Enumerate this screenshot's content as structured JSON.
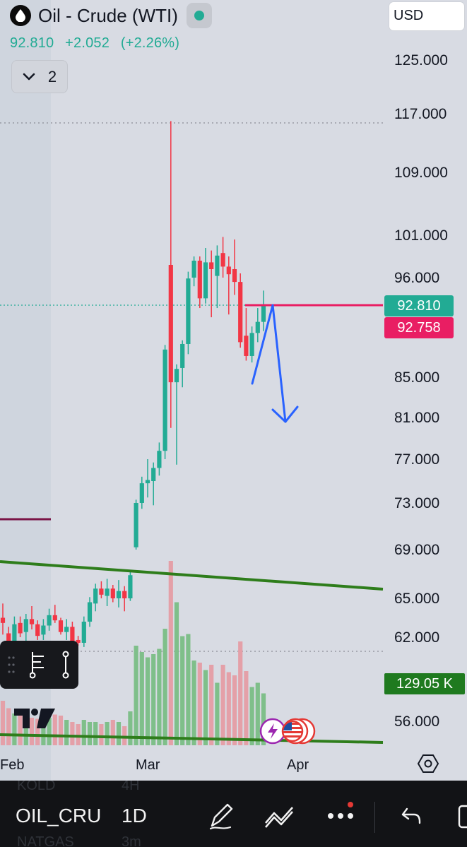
{
  "header": {
    "symbol": "Oil - Crude (WTI)",
    "last_price": "92.810",
    "change": "+2.052",
    "change_pct": "(+2.26%)",
    "indicators_count": "2",
    "currency": "USD"
  },
  "colors": {
    "up": "#22ab94",
    "down": "#f23645",
    "background": "#d8dbe3",
    "trendline": "#2e7d1b",
    "drawing_arrow": "#2962ff",
    "horizontal_line": "#e91e63"
  },
  "price_axis": {
    "ticks": [
      "125.000",
      "117.000",
      "109.000",
      "101.000",
      "96.000",
      "85.000",
      "81.000",
      "77.000",
      "73.000",
      "69.000",
      "65.000",
      "62.000",
      "56.000"
    ],
    "last_price_tag": "92.810",
    "line_tag": "92.758",
    "volume_tag": "129.05 K"
  },
  "time_axis": {
    "labels": [
      "Feb",
      "Mar",
      "Apr"
    ]
  },
  "chart_data": {
    "type": "candlestick",
    "title": "Oil - Crude (WTI)",
    "interval": "1D",
    "y_axis_ticks": [
      125,
      117,
      109,
      101,
      96,
      92.81,
      85,
      81,
      77,
      73,
      69,
      65,
      62,
      56
    ],
    "x_axis_labels": [
      "Feb",
      "Mar",
      "Apr"
    ],
    "last_close": 92.81,
    "horizontal_line": 92.758,
    "session_high": 116.0,
    "volume_last": "129.05 K",
    "candles_ohlc": [
      [
        63.5,
        64.6,
        62.2,
        63.1
      ],
      [
        62.3,
        62.8,
        61.0,
        61.4
      ],
      [
        61.5,
        63.6,
        61.0,
        63.0
      ],
      [
        63.1,
        63.6,
        62.0,
        62.3
      ],
      [
        62.4,
        63.8,
        61.6,
        63.4
      ],
      [
        63.4,
        64.4,
        62.6,
        63.0
      ],
      [
        63.0,
        63.3,
        61.8,
        62.1
      ],
      [
        62.2,
        63.4,
        61.8,
        62.9
      ],
      [
        62.9,
        64.2,
        62.5,
        63.7
      ],
      [
        63.7,
        64.5,
        63.1,
        63.3
      ],
      [
        63.3,
        63.5,
        62.2,
        62.4
      ],
      [
        62.4,
        63.4,
        61.8,
        62.8
      ],
      [
        62.8,
        63.2,
        61.3,
        61.7
      ],
      [
        61.8,
        62.1,
        61.4,
        61.6
      ],
      [
        61.6,
        63.6,
        61.3,
        63.2
      ],
      [
        63.2,
        65.1,
        62.8,
        64.7
      ],
      [
        64.6,
        66.2,
        64.0,
        65.8
      ],
      [
        65.8,
        66.4,
        65.0,
        65.3
      ],
      [
        65.2,
        66.6,
        64.4,
        65.8
      ],
      [
        65.8,
        66.1,
        64.7,
        65.0
      ],
      [
        65.0,
        66.5,
        64.3,
        65.6
      ],
      [
        65.6,
        66.0,
        64.0,
        65.0
      ],
      [
        65.0,
        67.2,
        64.8,
        66.9
      ],
      [
        69.2,
        73.3,
        69.0,
        73.0
      ],
      [
        73.0,
        75.4,
        72.5,
        74.8
      ],
      [
        74.8,
        77.0,
        73.5,
        75.1
      ],
      [
        75.0,
        76.7,
        72.8,
        76.2
      ],
      [
        76.2,
        78.6,
        75.5,
        77.8
      ],
      [
        77.8,
        88.5,
        77.0,
        88.0
      ],
      [
        97.5,
        116.0,
        80.0,
        84.5
      ],
      [
        84.5,
        86.4,
        76.5,
        85.9
      ],
      [
        86.0,
        89.0,
        84.0,
        88.6
      ],
      [
        88.6,
        96.7,
        87.5,
        95.9
      ],
      [
        96.0,
        98.5,
        95.0,
        98.0
      ],
      [
        98.0,
        98.5,
        92.5,
        93.6
      ],
      [
        93.6,
        99.5,
        93.0,
        97.8
      ],
      [
        97.8,
        99.2,
        91.5,
        97.0
      ],
      [
        96.2,
        99.8,
        92.5,
        98.6
      ],
      [
        98.9,
        100.8,
        96.0,
        97.3
      ],
      [
        97.3,
        98.5,
        91.8,
        96.4
      ],
      [
        97.0,
        100.5,
        94.0,
        95.5
      ],
      [
        95.5,
        96.5,
        88.2,
        88.8
      ],
      [
        89.5,
        92.5,
        86.8,
        87.3
      ],
      [
        87.3,
        90.5,
        86.6,
        89.8
      ],
      [
        89.8,
        92.5,
        88.8,
        91.0
      ],
      [
        91.0,
        94.5,
        90.0,
        92.81
      ]
    ],
    "volume_relative": [
      0.42,
      0.35,
      0.3,
      0.33,
      0.28,
      0.26,
      0.25,
      0.3,
      0.26,
      0.29,
      0.28,
      0.24,
      0.22,
      0.2,
      0.24,
      0.22,
      0.22,
      0.2,
      0.22,
      0.24,
      0.22,
      0.18,
      0.32,
      0.94,
      0.88,
      0.83,
      0.86,
      0.91,
      1.1,
      1.74,
      1.35,
      1.03,
      1.05,
      0.8,
      0.78,
      0.71,
      0.76,
      0.59,
      0.76,
      0.69,
      0.66,
      0.98,
      0.7,
      0.55,
      0.59,
      0.49
    ]
  },
  "toolbar": {
    "symbol": "OIL_CRU",
    "interval": "1D",
    "ghost_top": [
      "KOLD",
      "4H"
    ],
    "ghost_bottom": [
      "NATGAS",
      "3m"
    ]
  }
}
